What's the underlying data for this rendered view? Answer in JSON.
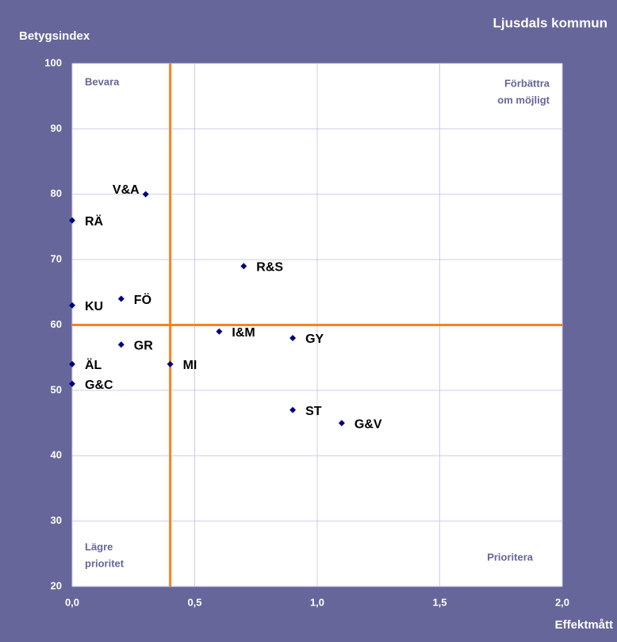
{
  "chart_data": {
    "type": "scatter",
    "title": "Ljusdals kommun",
    "y_label": "Betygsindex",
    "x_label": "Effektmått",
    "categories": [
      "V&A",
      "RÄ",
      "R&S",
      "KU",
      "FÖ",
      "I&M",
      "GY",
      "GR",
      "ÄL",
      "MI",
      "G&C",
      "ST",
      "G&V"
    ],
    "x": [
      0.3,
      0.0,
      0.7,
      0.0,
      0.2,
      0.6,
      0.9,
      0.2,
      0.0,
      0.4,
      0.0,
      0.9,
      1.1
    ],
    "values": [
      80,
      76,
      69,
      63,
      64,
      59,
      58,
      57,
      54,
      54,
      51,
      47,
      45
    ],
    "color": "#000080",
    "reference_lines": {
      "x": 0.4,
      "y": 60,
      "color": "#ff7f1e"
    },
    "quadrant_labels": {
      "top_left": [
        "Bevara"
      ],
      "top_right": [
        "Förbättra",
        "om möjligt"
      ],
      "bottom_left": [
        "Lägre",
        "prioritet"
      ],
      "bottom_right": [
        "Prioritera"
      ]
    },
    "xlim": [
      0,
      2
    ],
    "xticks": [
      {
        "value": 0,
        "label": "0,0"
      },
      {
        "value": 0.5,
        "label": "0,5"
      },
      {
        "value": 1,
        "label": "1,0"
      },
      {
        "value": 1.5,
        "label": "1,5"
      },
      {
        "value": 2,
        "label": "2,0"
      }
    ],
    "ylim": [
      20,
      100
    ],
    "yticks": [
      20,
      30,
      40,
      50,
      60,
      70,
      80,
      90,
      100
    ],
    "grid": true
  }
}
